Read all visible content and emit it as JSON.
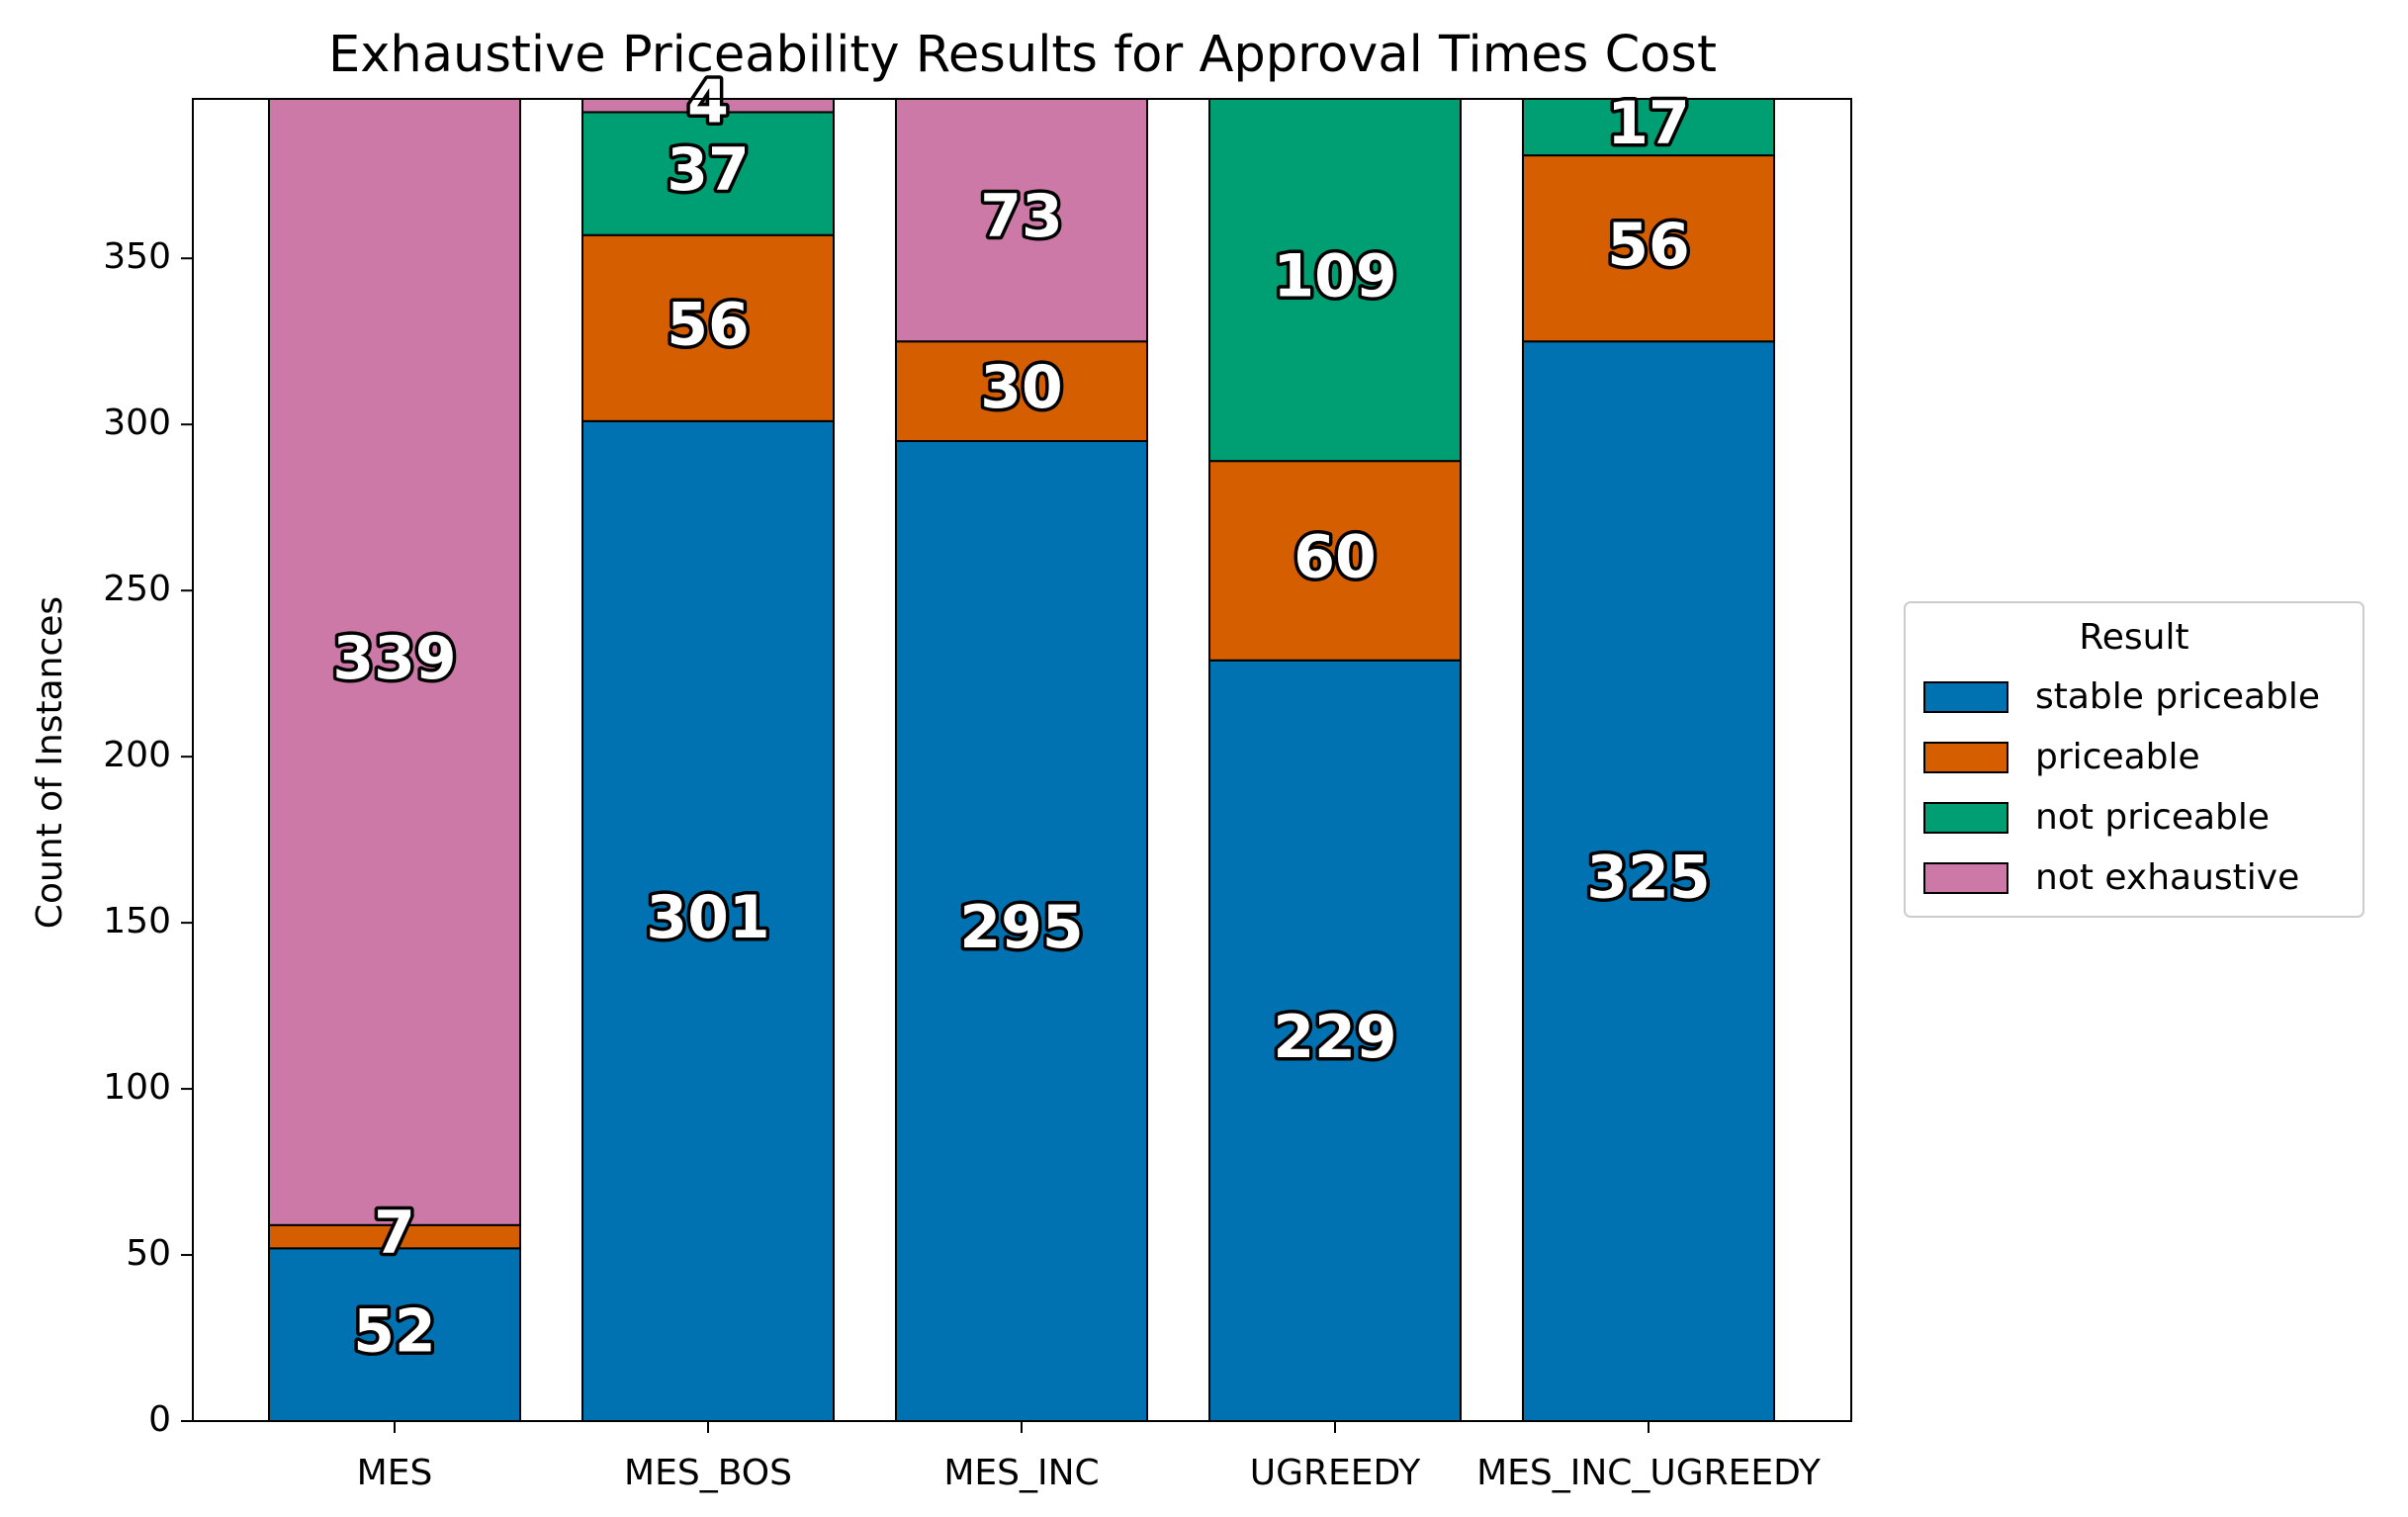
{
  "chart_data": {
    "type": "bar",
    "stacked": true,
    "title": "Exhaustive Priceability Results for Approval Times Cost",
    "xlabel": "",
    "ylabel": "Count of Instances",
    "categories": [
      "MES",
      "MES_BOS",
      "MES_INC",
      "UGREEDY",
      "MES_INC_UGREEDY"
    ],
    "ylim": [
      0,
      398
    ],
    "yticks": [
      0,
      50,
      100,
      150,
      200,
      250,
      300,
      350
    ],
    "grid": false,
    "legend": {
      "title": "Result",
      "placement": "right-center"
    },
    "series": [
      {
        "name": "stable priceable",
        "color": "#0072b2",
        "values": [
          52,
          301,
          295,
          229,
          325
        ]
      },
      {
        "name": "priceable",
        "color": "#d55e00",
        "values": [
          7,
          56,
          30,
          60,
          56
        ]
      },
      {
        "name": "not priceable",
        "color": "#009e73",
        "values": [
          0,
          37,
          0,
          109,
          17
        ]
      },
      {
        "name": "not exhaustive",
        "color": "#cc79a7",
        "values": [
          339,
          4,
          73,
          0,
          0
        ]
      }
    ]
  }
}
